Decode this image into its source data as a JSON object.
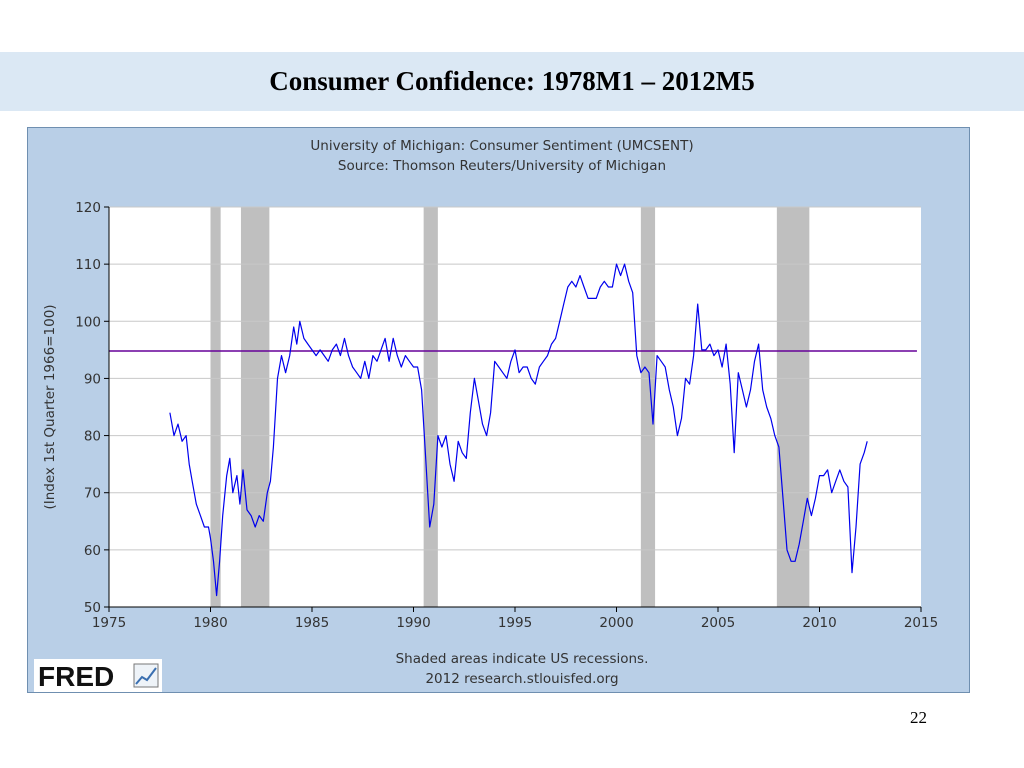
{
  "slide": {
    "title": "Consumer Confidence: 1978M1 – 2012M5",
    "page_number": "22"
  },
  "fred": {
    "logo_text": "FRED",
    "footer_line1": "Shaded areas indicate US recessions.",
    "footer_line2": "2012 research.stlouisfed.org"
  },
  "chart_data": {
    "type": "line",
    "title": "University of Michigan: Consumer Sentiment (UMCSENT)",
    "subtitle": "Source: Thomson Reuters/University of Michigan",
    "xlabel": "",
    "ylabel": "(Index 1st Quarter 1966=100)",
    "xlim": [
      1975,
      2015
    ],
    "ylim": [
      50,
      120
    ],
    "xticks": [
      1975,
      1980,
      1985,
      1990,
      1995,
      2000,
      2005,
      2010,
      2015
    ],
    "yticks": [
      50,
      60,
      70,
      80,
      90,
      100,
      110,
      120
    ],
    "grid": true,
    "colors": {
      "series": "#0000ee",
      "average": "#660099",
      "recession": "#bfbfbf"
    },
    "recessions": [
      [
        1980.0,
        1980.5
      ],
      [
        1981.5,
        1982.9
      ],
      [
        1990.5,
        1991.2
      ],
      [
        2001.2,
        2001.9
      ],
      [
        2007.9,
        2009.5
      ]
    ],
    "average_line": {
      "value": 94.8,
      "x": [
        1975.0,
        2014.8
      ]
    },
    "series": [
      {
        "name": "UMCSENT",
        "points": [
          [
            1978.0,
            84
          ],
          [
            1978.2,
            80
          ],
          [
            1978.4,
            82
          ],
          [
            1978.6,
            79
          ],
          [
            1978.8,
            80
          ],
          [
            1978.95,
            75
          ],
          [
            1979.1,
            72
          ],
          [
            1979.3,
            68
          ],
          [
            1979.5,
            66
          ],
          [
            1979.7,
            64
          ],
          [
            1979.9,
            64
          ],
          [
            1980.0,
            62
          ],
          [
            1980.15,
            58
          ],
          [
            1980.3,
            52
          ],
          [
            1980.45,
            58
          ],
          [
            1980.6,
            66
          ],
          [
            1980.8,
            73
          ],
          [
            1980.95,
            76
          ],
          [
            1981.1,
            70
          ],
          [
            1981.3,
            73
          ],
          [
            1981.45,
            68
          ],
          [
            1981.6,
            74
          ],
          [
            1981.8,
            67
          ],
          [
            1982.0,
            66
          ],
          [
            1982.2,
            64
          ],
          [
            1982.4,
            66
          ],
          [
            1982.6,
            65
          ],
          [
            1982.8,
            70
          ],
          [
            1982.95,
            72
          ],
          [
            1983.1,
            78
          ],
          [
            1983.3,
            90
          ],
          [
            1983.5,
            94
          ],
          [
            1983.7,
            91
          ],
          [
            1983.9,
            94
          ],
          [
            1984.1,
            99
          ],
          [
            1984.25,
            96
          ],
          [
            1984.4,
            100
          ],
          [
            1984.6,
            97
          ],
          [
            1984.8,
            96
          ],
          [
            1985.0,
            95
          ],
          [
            1985.2,
            94
          ],
          [
            1985.4,
            95
          ],
          [
            1985.6,
            94
          ],
          [
            1985.8,
            93
          ],
          [
            1986.0,
            95
          ],
          [
            1986.2,
            96
          ],
          [
            1986.4,
            94
          ],
          [
            1986.6,
            97
          ],
          [
            1986.8,
            94
          ],
          [
            1987.0,
            92
          ],
          [
            1987.2,
            91
          ],
          [
            1987.4,
            90
          ],
          [
            1987.6,
            93
          ],
          [
            1987.8,
            90
          ],
          [
            1988.0,
            94
          ],
          [
            1988.2,
            93
          ],
          [
            1988.4,
            95
          ],
          [
            1988.6,
            97
          ],
          [
            1988.8,
            93
          ],
          [
            1989.0,
            97
          ],
          [
            1989.2,
            94
          ],
          [
            1989.4,
            92
          ],
          [
            1989.6,
            94
          ],
          [
            1989.8,
            93
          ],
          [
            1990.0,
            92
          ],
          [
            1990.2,
            92
          ],
          [
            1990.4,
            88
          ],
          [
            1990.6,
            76
          ],
          [
            1990.8,
            64
          ],
          [
            1991.0,
            68
          ],
          [
            1991.2,
            80
          ],
          [
            1991.4,
            78
          ],
          [
            1991.6,
            80
          ],
          [
            1991.8,
            75
          ],
          [
            1992.0,
            72
          ],
          [
            1992.2,
            79
          ],
          [
            1992.4,
            77
          ],
          [
            1992.6,
            76
          ],
          [
            1992.8,
            84
          ],
          [
            1993.0,
            90
          ],
          [
            1993.2,
            86
          ],
          [
            1993.4,
            82
          ],
          [
            1993.6,
            80
          ],
          [
            1993.8,
            84
          ],
          [
            1994.0,
            93
          ],
          [
            1994.2,
            92
          ],
          [
            1994.4,
            91
          ],
          [
            1994.6,
            90
          ],
          [
            1994.8,
            93
          ],
          [
            1995.0,
            95
          ],
          [
            1995.2,
            91
          ],
          [
            1995.4,
            92
          ],
          [
            1995.6,
            92
          ],
          [
            1995.8,
            90
          ],
          [
            1996.0,
            89
          ],
          [
            1996.2,
            92
          ],
          [
            1996.4,
            93
          ],
          [
            1996.6,
            94
          ],
          [
            1996.8,
            96
          ],
          [
            1997.0,
            97
          ],
          [
            1997.2,
            100
          ],
          [
            1997.4,
            103
          ],
          [
            1997.6,
            106
          ],
          [
            1997.8,
            107
          ],
          [
            1998.0,
            106
          ],
          [
            1998.2,
            108
          ],
          [
            1998.4,
            106
          ],
          [
            1998.6,
            104
          ],
          [
            1998.8,
            104
          ],
          [
            1999.0,
            104
          ],
          [
            1999.2,
            106
          ],
          [
            1999.4,
            107
          ],
          [
            1999.6,
            106
          ],
          [
            1999.8,
            106
          ],
          [
            2000.0,
            110
          ],
          [
            2000.2,
            108
          ],
          [
            2000.4,
            110
          ],
          [
            2000.6,
            107
          ],
          [
            2000.8,
            105
          ],
          [
            2001.0,
            94
          ],
          [
            2001.2,
            91
          ],
          [
            2001.4,
            92
          ],
          [
            2001.6,
            91
          ],
          [
            2001.8,
            82
          ],
          [
            2002.0,
            94
          ],
          [
            2002.2,
            93
          ],
          [
            2002.4,
            92
          ],
          [
            2002.6,
            88
          ],
          [
            2002.8,
            85
          ],
          [
            2003.0,
            80
          ],
          [
            2003.2,
            83
          ],
          [
            2003.4,
            90
          ],
          [
            2003.6,
            89
          ],
          [
            2003.8,
            94
          ],
          [
            2004.0,
            103
          ],
          [
            2004.2,
            95
          ],
          [
            2004.4,
            95
          ],
          [
            2004.6,
            96
          ],
          [
            2004.8,
            94
          ],
          [
            2005.0,
            95
          ],
          [
            2005.2,
            92
          ],
          [
            2005.4,
            96
          ],
          [
            2005.6,
            89
          ],
          [
            2005.8,
            77
          ],
          [
            2006.0,
            91
          ],
          [
            2006.2,
            88
          ],
          [
            2006.4,
            85
          ],
          [
            2006.6,
            88
          ],
          [
            2006.8,
            93
          ],
          [
            2007.0,
            96
          ],
          [
            2007.2,
            88
          ],
          [
            2007.4,
            85
          ],
          [
            2007.6,
            83
          ],
          [
            2007.8,
            80
          ],
          [
            2008.0,
            78
          ],
          [
            2008.2,
            69
          ],
          [
            2008.4,
            60
          ],
          [
            2008.6,
            58
          ],
          [
            2008.8,
            58
          ],
          [
            2009.0,
            61
          ],
          [
            2009.2,
            65
          ],
          [
            2009.4,
            69
          ],
          [
            2009.6,
            66
          ],
          [
            2009.8,
            69
          ],
          [
            2010.0,
            73
          ],
          [
            2010.2,
            73
          ],
          [
            2010.4,
            74
          ],
          [
            2010.6,
            70
          ],
          [
            2010.8,
            72
          ],
          [
            2011.0,
            74
          ],
          [
            2011.2,
            72
          ],
          [
            2011.4,
            71
          ],
          [
            2011.6,
            56
          ],
          [
            2011.8,
            64
          ],
          [
            2012.0,
            75
          ],
          [
            2012.2,
            77
          ],
          [
            2012.35,
            79
          ]
        ]
      }
    ]
  }
}
